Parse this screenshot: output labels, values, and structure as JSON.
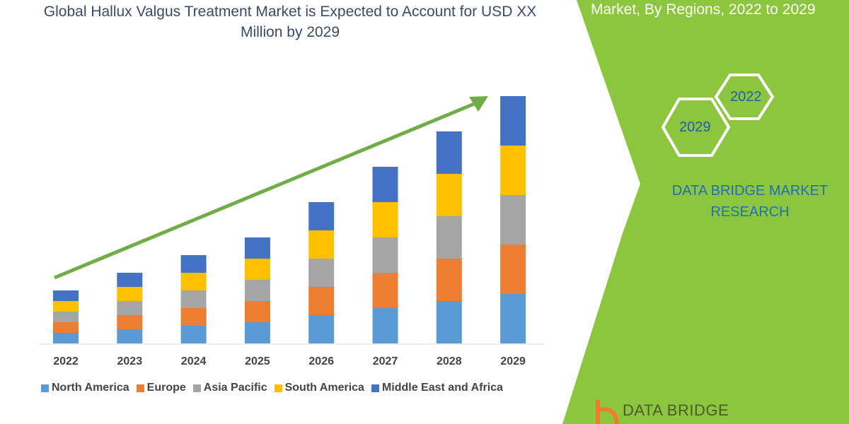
{
  "chart_data": {
    "type": "bar",
    "stacked": true,
    "title": "Global Hallux Valgus Treatment Market is Expected to Account for USD XX Million by 2029",
    "categories": [
      "2022",
      "2023",
      "2024",
      "2025",
      "2026",
      "2027",
      "2028",
      "2029"
    ],
    "series": [
      {
        "name": "North America",
        "color": "#5b9bd5",
        "values": [
          15,
          20,
          25,
          30,
          40,
          50,
          60,
          70
        ]
      },
      {
        "name": "Europe",
        "color": "#ed7d31",
        "values": [
          15,
          20,
          25,
          30,
          40,
          50,
          60,
          70
        ]
      },
      {
        "name": "Asia Pacific",
        "color": "#a5a5a5",
        "values": [
          15,
          20,
          25,
          30,
          40,
          50,
          60,
          70
        ]
      },
      {
        "name": "South America",
        "color": "#ffc000",
        "values": [
          15,
          20,
          25,
          30,
          40,
          50,
          60,
          70
        ]
      },
      {
        "name": "Middle East and Africa",
        "color": "#4472c4",
        "values": [
          15,
          20,
          25,
          30,
          40,
          50,
          60,
          70
        ]
      }
    ],
    "legend_position": "bottom",
    "grid": false,
    "y_axis_shown": false,
    "trend_arrow_color": "#70ad47"
  },
  "side_panel": {
    "title": "Market, By Regions, 2022 to 2029",
    "hex_labels": [
      "2022",
      "2029"
    ],
    "brand": "DATA BRIDGE MARKET RESEARCH",
    "background_color": "#8cc63f"
  },
  "logo": {
    "text": "DATA BRIDGE"
  }
}
